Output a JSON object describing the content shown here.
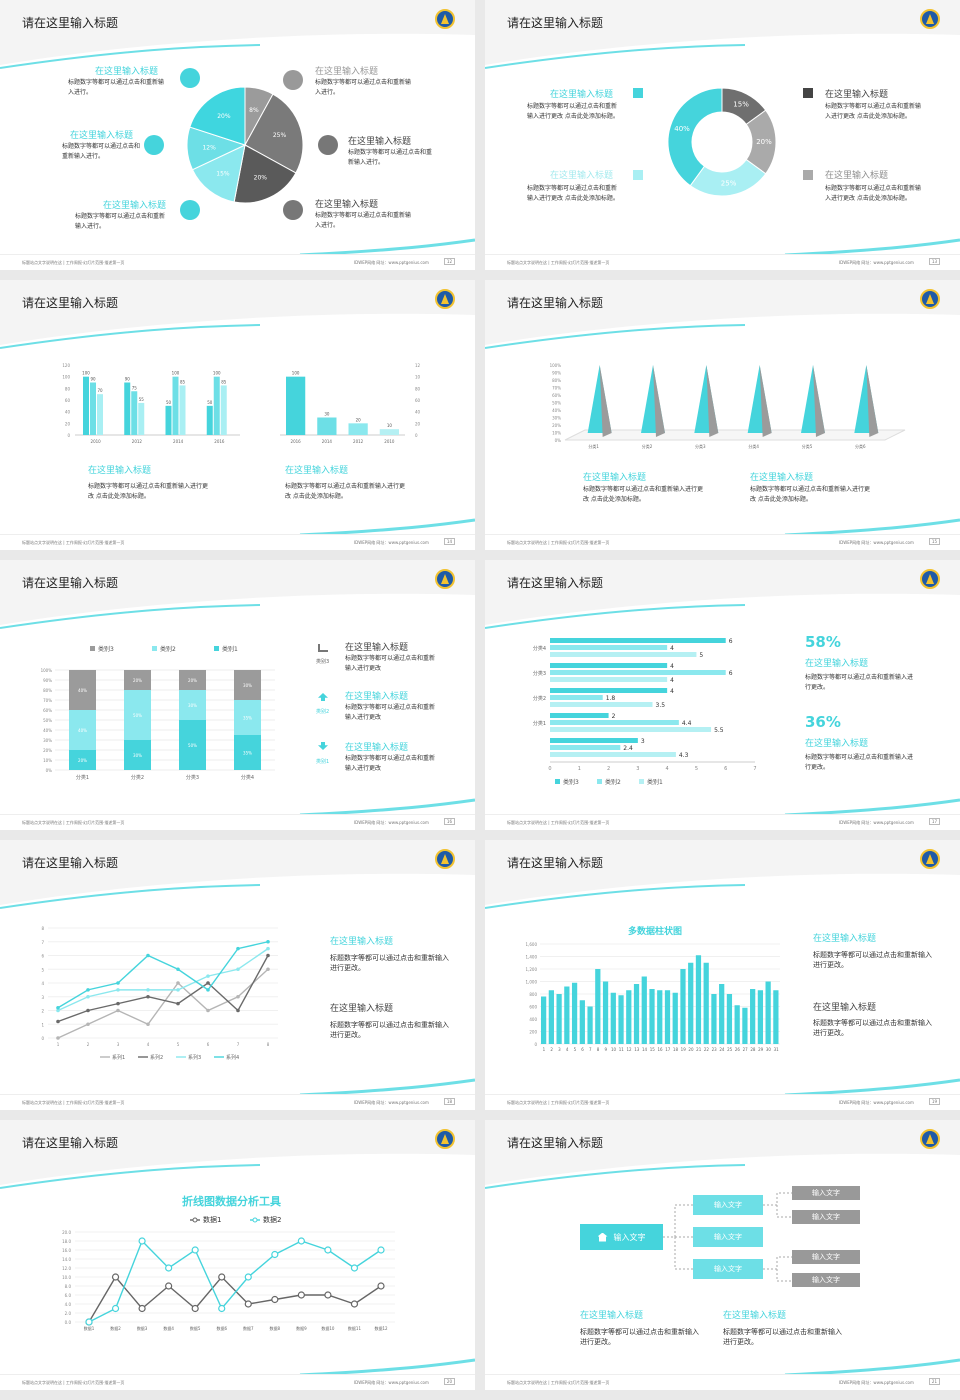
{
  "common": {
    "title": "请在这里输入标题",
    "footer_left": "标题站点文字说明在这 | 工作周报·幻灯片范围·描述第一页",
    "footer_right": "IDWEP网络 网址：www.pptgenius.com"
  },
  "s1": {
    "page": "12",
    "h": "在这里输入标题",
    "body": "标题数字等都可以通过点击和重新输入进行。",
    "body2": "标题数字等都可以通过点击和重新输入进行。",
    "slices": [
      {
        "label": "8%",
        "value": 8,
        "color": "#9b9b9b"
      },
      {
        "label": "25%",
        "value": 25,
        "color": "#7a7a7a"
      },
      {
        "label": "20%",
        "value": 20,
        "color": "#5a5a5a"
      },
      {
        "label": "15%",
        "value": 15,
        "color": "#8be8ee"
      },
      {
        "label": "12%",
        "value": 12,
        "color": "#6ddfe6"
      },
      {
        "label": "20%",
        "value": 20,
        "color": "#3fd6df"
      }
    ]
  },
  "s2": {
    "page": "13",
    "h": "在这里输入标题",
    "body": "标题数字等都可以通过点击和重新输入进行更改 点击此处添加标题。",
    "slices": [
      {
        "label": "15%",
        "value": 15,
        "color": "#6f6f6f"
      },
      {
        "label": "20%",
        "value": 20,
        "color": "#aaaaaa"
      },
      {
        "label": "25%",
        "value": 25,
        "color": "#a9eff3"
      },
      {
        "label": "40%",
        "value": 40,
        "color": "#45d4dc"
      }
    ]
  },
  "s3": {
    "page": "14",
    "h": "在这里输入标题",
    "body": "标题数字等都可以通过点击和重新输入进行更改 点击此处添加标题。",
    "chart_data": [
      {
        "type": "bar",
        "categories": [
          "2010",
          "2012",
          "2014",
          "2016"
        ],
        "series": [
          {
            "values": [
              100,
              90,
              50,
              50
            ]
          },
          {
            "values": [
              90,
              75,
              100,
              100
            ]
          },
          {
            "values": [
              70,
              55,
              85,
              85
            ]
          }
        ],
        "ylim": [
          0,
          120
        ]
      },
      {
        "type": "bar",
        "categories": [
          "2016",
          "2014",
          "2012",
          "2010"
        ],
        "values": [
          100,
          30,
          20,
          10
        ],
        "ylim": [
          0,
          120
        ]
      }
    ]
  },
  "s4": {
    "page": "15",
    "h": "在这里输入标题",
    "body": "标题数字等都可以通过点击和重新输入进行更改 点击此处添加标题。",
    "chart_data": {
      "type": "bar",
      "categories": [
        "分类1",
        "分类2",
        "分类3",
        "分类4",
        "分类5",
        "分类6"
      ],
      "values": [
        100,
        100,
        100,
        100,
        100,
        100
      ],
      "yticks": [
        "100%",
        "90%",
        "80%",
        "70%",
        "60%",
        "50%",
        "40%",
        "30%",
        "20%",
        "10%",
        "0%"
      ]
    }
  },
  "s5": {
    "page": "16",
    "h": "在这里输入标题",
    "body": "标题数字等都可以通过点击和重新输入进行更改",
    "legend": [
      "类别3",
      "类别2",
      "类别1"
    ],
    "side_labels": [
      "类别3",
      "类别2",
      "类别1"
    ],
    "chart_data": {
      "type": "bar",
      "categories": [
        "分类1",
        "分类2",
        "分类3",
        "分类4"
      ],
      "series": [
        {
          "name": "类别1",
          "values": [
            20,
            30,
            50,
            35
          ]
        },
        {
          "name": "类别2",
          "values": [
            40,
            50,
            30,
            35
          ]
        },
        {
          "name": "类别3",
          "values": [
            40,
            20,
            20,
            30
          ]
        }
      ],
      "ylim": [
        0,
        100
      ]
    }
  },
  "s6": {
    "page": "17",
    "p1": "58%",
    "p2": "36%",
    "h": "在这里输入标题",
    "body": "标题数字等都可以通过点击和重新输入进行更改。",
    "chart_data": {
      "type": "bar",
      "categories": [
        "分类4",
        "分类3",
        "分类2",
        "分类1"
      ],
      "series": [
        {
          "name": "类别3",
          "values": [
            6,
            4,
            4,
            2
          ]
        },
        {
          "name": "类别2",
          "values": [
            4,
            6,
            1.8,
            4.4
          ]
        },
        {
          "name": "类别1",
          "values": [
            5,
            4,
            3.5,
            5.5
          ]
        }
      ],
      "extra": [
        3,
        2.4,
        4.3
      ],
      "xlim": [
        0,
        7
      ]
    }
  },
  "s7": {
    "page": "18",
    "h": "在这里输入标题",
    "body": "标题数字等都可以通过点击和重新输入进行更改。",
    "chart_data": {
      "type": "line",
      "x": [
        1,
        2,
        3,
        4,
        5,
        6,
        7,
        8
      ],
      "series": [
        {
          "name": "系列1",
          "values": [
            0,
            1,
            2,
            1,
            4,
            2,
            3,
            5
          ]
        },
        {
          "name": "系列2",
          "values": [
            1.2,
            2,
            2.5,
            3,
            2.5,
            4,
            2,
            6
          ]
        },
        {
          "name": "系列3",
          "values": [
            2,
            3,
            3.5,
            3.5,
            3.5,
            4.5,
            5,
            6.5
          ]
        },
        {
          "name": "系列4",
          "values": [
            2.2,
            3.5,
            4,
            6,
            5,
            3.5,
            6.5,
            7
          ]
        }
      ],
      "ylim": [
        0,
        8
      ]
    }
  },
  "s8": {
    "page": "19",
    "h": "在这里输入标题",
    "body": "标题数字等都可以通过点击和重新输入进行更改。",
    "chart_data": {
      "type": "bar",
      "title": "多数据柱状图",
      "categories": [
        "1",
        "2",
        "3",
        "4",
        "5",
        "6",
        "7",
        "8",
        "9",
        "10",
        "11",
        "12",
        "13",
        "14",
        "15",
        "16",
        "17",
        "18",
        "19",
        "20",
        "21",
        "22",
        "23",
        "24",
        "25",
        "26",
        "27",
        "28",
        "29",
        "30",
        "31"
      ],
      "values": [
        760,
        860,
        800,
        920,
        980,
        700,
        600,
        1200,
        1000,
        820,
        780,
        860,
        960,
        1080,
        880,
        860,
        860,
        820,
        1200,
        1300,
        1420,
        1300,
        800,
        960,
        800,
        620,
        580,
        880,
        860,
        1000,
        860
      ],
      "ylim": [
        0,
        1600
      ]
    }
  },
  "s9": {
    "page": "20",
    "title": "折线图数据分析工具",
    "legend": [
      "数据1",
      "数据2"
    ],
    "chart_data": {
      "type": "line",
      "categories": [
        "数据1",
        "数据2",
        "数据3",
        "数据4",
        "数据5",
        "数据6",
        "数据7",
        "数据8",
        "数据9",
        "数据10",
        "数据11",
        "数据12"
      ],
      "series": [
        {
          "name": "数据1",
          "values": [
            0,
            10,
            3,
            8,
            3,
            10,
            4,
            5,
            6,
            6,
            4,
            8
          ]
        },
        {
          "name": "数据2",
          "values": [
            0,
            3,
            18,
            12,
            16,
            3,
            10,
            15,
            18,
            16,
            12,
            16
          ]
        }
      ],
      "ylim": [
        0,
        20
      ]
    }
  },
  "s10": {
    "page": "21",
    "root": "输入文字",
    "mid": [
      "输入文字",
      "输入文字",
      "输入文字"
    ],
    "leaf": [
      "输入文字",
      "输入文字",
      "输入文字",
      "输入文字"
    ],
    "h": "在这里输入标题",
    "body": "标题数字等都可以通过点击和重新输入进行更改。"
  }
}
